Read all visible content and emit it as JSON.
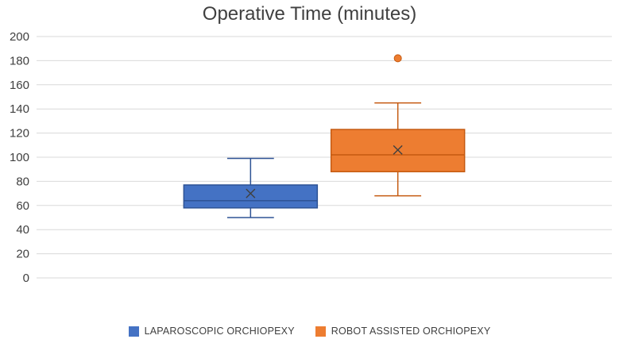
{
  "title": "Operative Time (minutes)",
  "chart_data": {
    "type": "boxplot",
    "title": "Operative Time (minutes)",
    "ylim": [
      0,
      200
    ],
    "ytick_step": 20,
    "grid": true,
    "legend_position": "bottom",
    "series": [
      {
        "name": "LAPAROSCOPIC ORCHIOPEXY",
        "color": "#4472C4",
        "border_color": "#2E5395",
        "min": 50,
        "q1": 58,
        "median": 64,
        "q3": 77,
        "max": 99,
        "mean": 70,
        "outliers": []
      },
      {
        "name": "ROBOT ASSISTED ORCHIOPEXY",
        "color": "#ED7D31",
        "border_color": "#C55A11",
        "min": 68,
        "q1": 88,
        "median": 102,
        "q3": 123,
        "max": 145,
        "mean": 106,
        "outliers": [
          182
        ]
      }
    ]
  },
  "legend": {
    "items": [
      {
        "label": "LAPAROSCOPIC ORCHIOPEXY",
        "color": "#4472C4"
      },
      {
        "label": "ROBOT ASSISTED ORCHIOPEXY",
        "color": "#ED7D31"
      }
    ]
  },
  "axes": {
    "y_tick_labels": [
      "0",
      "20",
      "40",
      "60",
      "80",
      "100",
      "120",
      "140",
      "160",
      "180",
      "200"
    ]
  },
  "colors": {
    "gridline": "#D9D9D9",
    "axis_text": "#404040",
    "mean_marker": "#404040"
  }
}
